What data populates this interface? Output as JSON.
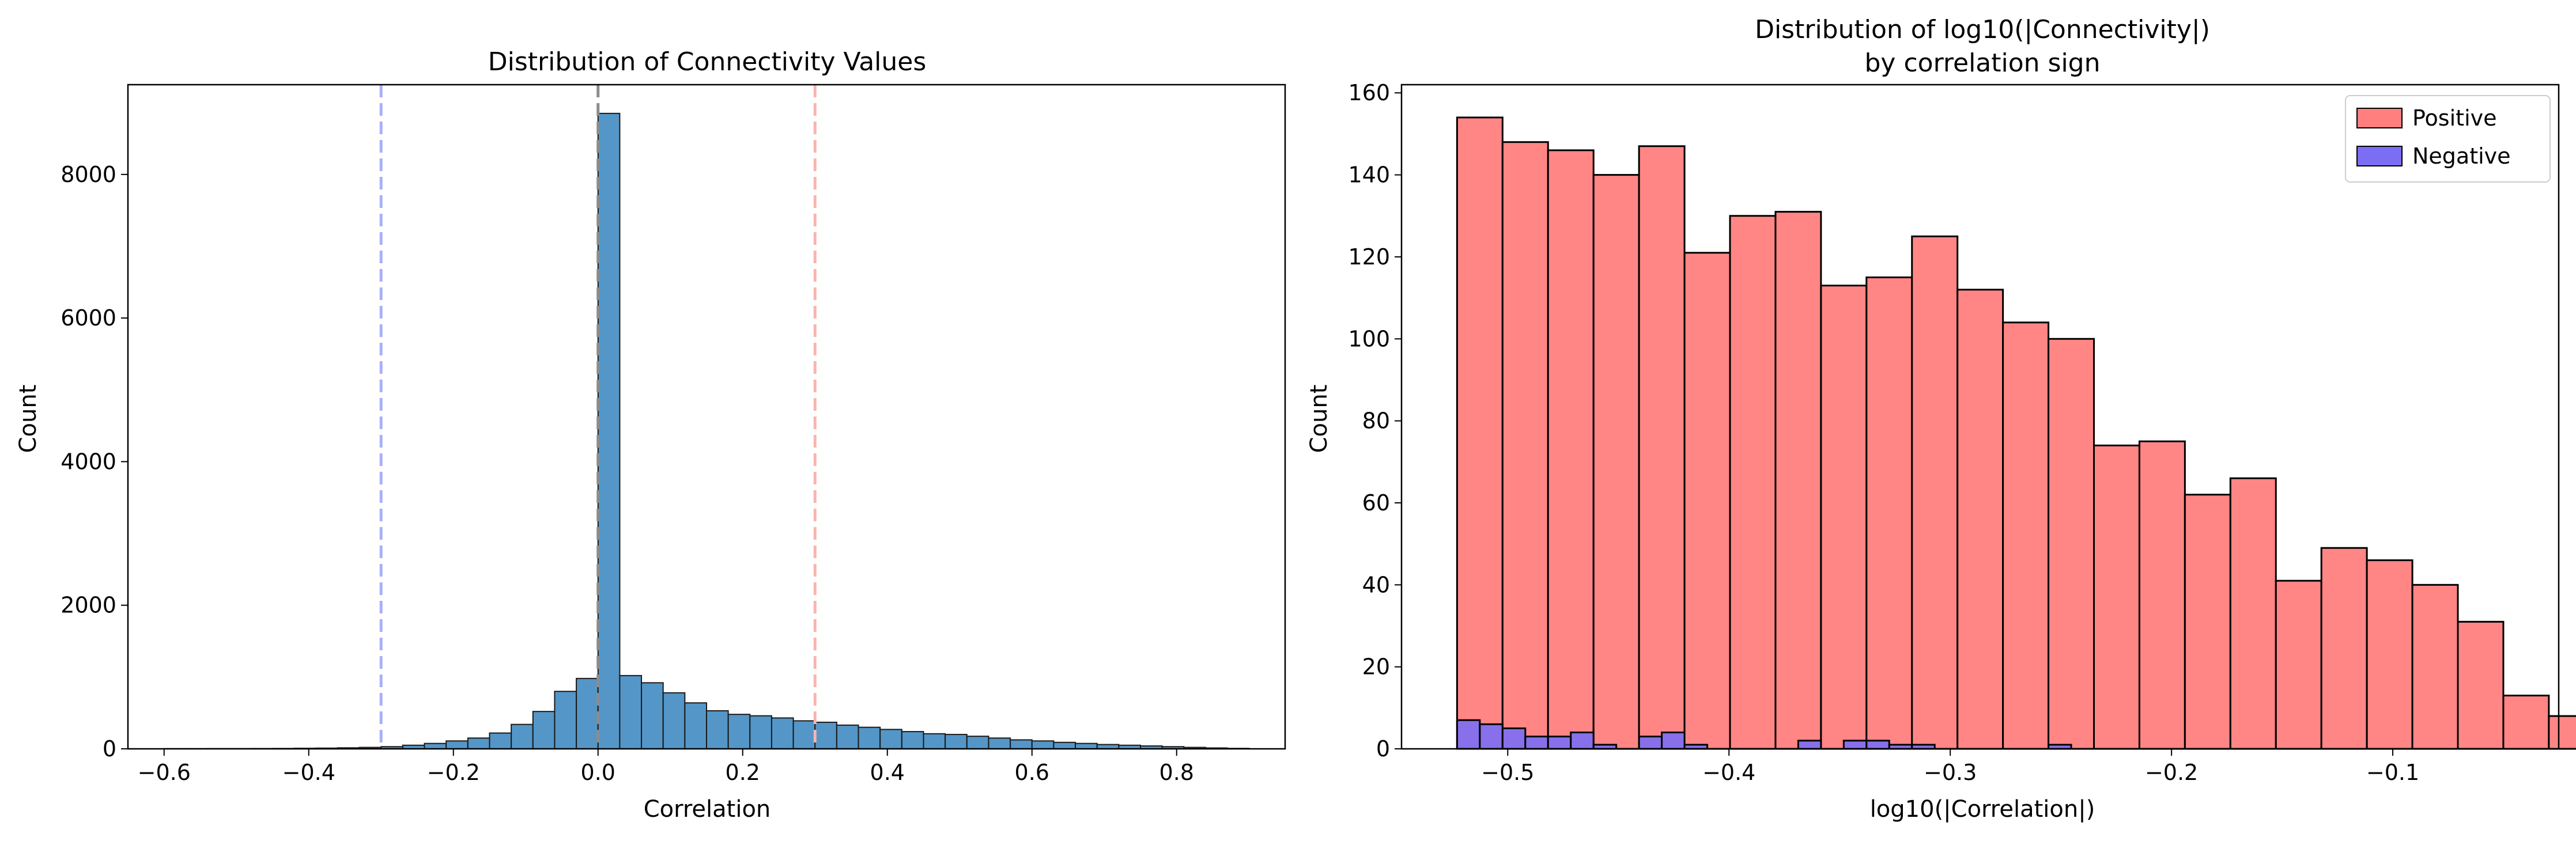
{
  "chart_data": [
    {
      "type": "bar",
      "title": "Distribution of Connectivity Values",
      "xlabel": "Correlation",
      "ylabel": "Count",
      "xlim": [
        -0.65,
        0.95
      ],
      "ylim": [
        0,
        9250
      ],
      "xticks": [
        -0.6,
        -0.4,
        -0.2,
        0.0,
        0.2,
        0.4,
        0.6,
        0.8
      ],
      "xtick_labels": [
        "−0.6",
        "−0.4",
        "−0.2",
        "0.0",
        "0.2",
        "0.4",
        "0.6",
        "0.8"
      ],
      "yticks": [
        0,
        2000,
        4000,
        6000,
        8000
      ],
      "ytick_labels": [
        "0",
        "2000",
        "4000",
        "6000",
        "8000"
      ],
      "grid": false,
      "bar_color": "#5496c7",
      "edge_color": "#1a1a1a",
      "bin_width": 0.03,
      "bins": [
        {
          "x0": -0.6,
          "count": 2
        },
        {
          "x0": -0.57,
          "count": 2
        },
        {
          "x0": -0.54,
          "count": 3
        },
        {
          "x0": -0.51,
          "count": 3
        },
        {
          "x0": -0.48,
          "count": 4
        },
        {
          "x0": -0.45,
          "count": 5
        },
        {
          "x0": -0.42,
          "count": 8
        },
        {
          "x0": -0.39,
          "count": 10
        },
        {
          "x0": -0.36,
          "count": 14
        },
        {
          "x0": -0.33,
          "count": 20
        },
        {
          "x0": -0.3,
          "count": 30
        },
        {
          "x0": -0.27,
          "count": 50
        },
        {
          "x0": -0.24,
          "count": 75
        },
        {
          "x0": -0.21,
          "count": 110
        },
        {
          "x0": -0.18,
          "count": 150
        },
        {
          "x0": -0.15,
          "count": 220
        },
        {
          "x0": -0.12,
          "count": 340
        },
        {
          "x0": -0.09,
          "count": 520
        },
        {
          "x0": -0.06,
          "count": 800
        },
        {
          "x0": -0.03,
          "count": 980
        },
        {
          "x0": 0.0,
          "count": 8850
        },
        {
          "x0": 0.03,
          "count": 1020
        },
        {
          "x0": 0.06,
          "count": 920
        },
        {
          "x0": 0.09,
          "count": 780
        },
        {
          "x0": 0.12,
          "count": 640
        },
        {
          "x0": 0.15,
          "count": 530
        },
        {
          "x0": 0.18,
          "count": 480
        },
        {
          "x0": 0.21,
          "count": 460
        },
        {
          "x0": 0.24,
          "count": 430
        },
        {
          "x0": 0.27,
          "count": 390
        },
        {
          "x0": 0.3,
          "count": 370
        },
        {
          "x0": 0.33,
          "count": 330
        },
        {
          "x0": 0.36,
          "count": 300
        },
        {
          "x0": 0.39,
          "count": 270
        },
        {
          "x0": 0.42,
          "count": 240
        },
        {
          "x0": 0.45,
          "count": 210
        },
        {
          "x0": 0.48,
          "count": 200
        },
        {
          "x0": 0.51,
          "count": 175
        },
        {
          "x0": 0.54,
          "count": 150
        },
        {
          "x0": 0.57,
          "count": 125
        },
        {
          "x0": 0.6,
          "count": 110
        },
        {
          "x0": 0.63,
          "count": 90
        },
        {
          "x0": 0.66,
          "count": 75
        },
        {
          "x0": 0.69,
          "count": 60
        },
        {
          "x0": 0.72,
          "count": 50
        },
        {
          "x0": 0.75,
          "count": 40
        },
        {
          "x0": 0.78,
          "count": 30
        },
        {
          "x0": 0.81,
          "count": 20
        },
        {
          "x0": 0.84,
          "count": 12
        },
        {
          "x0": 0.87,
          "count": 6
        }
      ],
      "reference_lines": [
        {
          "x": -0.3,
          "color": "#a8b0f5",
          "style": "dashed"
        },
        {
          "x": 0.0,
          "color": "#8c8c8c",
          "style": "dashed"
        },
        {
          "x": 0.3,
          "color": "#f7b5b0",
          "style": "dashed"
        }
      ]
    },
    {
      "type": "bar",
      "title": "Distribution of log10(|Connectivity|)",
      "subtitle": "by correlation sign",
      "xlabel": "log10(|Correlation|)",
      "ylabel": "Count",
      "xlim": [
        -0.548,
        -0.025
      ],
      "ylim": [
        0,
        162
      ],
      "xticks": [
        -0.5,
        -0.4,
        -0.3,
        -0.2,
        -0.1
      ],
      "xtick_labels": [
        "−0.5",
        "−0.4",
        "−0.3",
        "−0.2",
        "−0.1"
      ],
      "yticks": [
        0,
        20,
        40,
        60,
        80,
        100,
        120,
        140,
        160
      ],
      "ytick_labels": [
        "0",
        "20",
        "40",
        "60",
        "80",
        "100",
        "120",
        "140",
        "160"
      ],
      "grid": false,
      "legend_position": "top-right",
      "series": [
        {
          "name": "Positive",
          "color": "#ff7f7e",
          "x_start": -0.5229,
          "bin_width": 0.02056,
          "values": [
            154,
            148,
            146,
            140,
            147,
            121,
            130,
            131,
            113,
            115,
            125,
            112,
            104,
            100,
            74,
            75,
            62,
            66,
            41,
            49,
            46,
            40,
            31,
            13,
            8
          ]
        },
        {
          "name": "Negative",
          "color": "#7b6ef5",
          "x_start": -0.5229,
          "bin_width": 0.01028,
          "values": [
            7,
            6,
            5,
            3,
            3,
            4,
            1,
            0,
            3,
            4,
            1,
            0,
            0,
            0,
            0,
            2,
            0,
            2,
            2,
            1,
            1,
            0,
            0,
            0,
            0,
            0,
            1
          ]
        }
      ]
    }
  ]
}
